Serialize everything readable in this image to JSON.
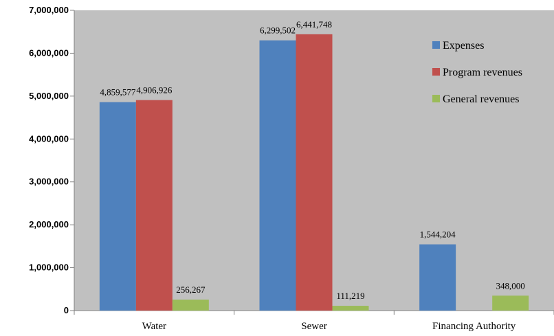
{
  "chart_data": {
    "type": "bar",
    "categories": [
      "Water",
      "Sewer",
      "Financing Authority"
    ],
    "series": [
      {
        "name": "Expenses",
        "values": [
          4859577,
          6299502,
          1544204
        ],
        "labels": [
          "4,859,577",
          "6,299,502",
          "1,544,204"
        ],
        "color": "#4F81BD"
      },
      {
        "name": "Program revenues",
        "values": [
          4906926,
          6441748,
          null
        ],
        "labels": [
          "4,906,926",
          "6,441,748",
          ""
        ],
        "color": "#C0504D"
      },
      {
        "name": "General revenues",
        "values": [
          256267,
          111219,
          348000
        ],
        "labels": [
          "256,267",
          "111,219",
          "348,000"
        ],
        "color": "#9BBB59"
      }
    ],
    "ylim": [
      0,
      7000000
    ],
    "yticks": [
      0,
      1000000,
      2000000,
      3000000,
      4000000,
      5000000,
      6000000,
      7000000
    ],
    "ytick_labels": [
      "0",
      "1,000,000",
      "2,000,000",
      "3,000,000",
      "4,000,000",
      "5,000,000",
      "6,000,000",
      "7,000,000"
    ],
    "grid": false,
    "legend": "top-right",
    "plot_background": "#C0C0C0",
    "title": "",
    "xlabel": "",
    "ylabel": ""
  }
}
